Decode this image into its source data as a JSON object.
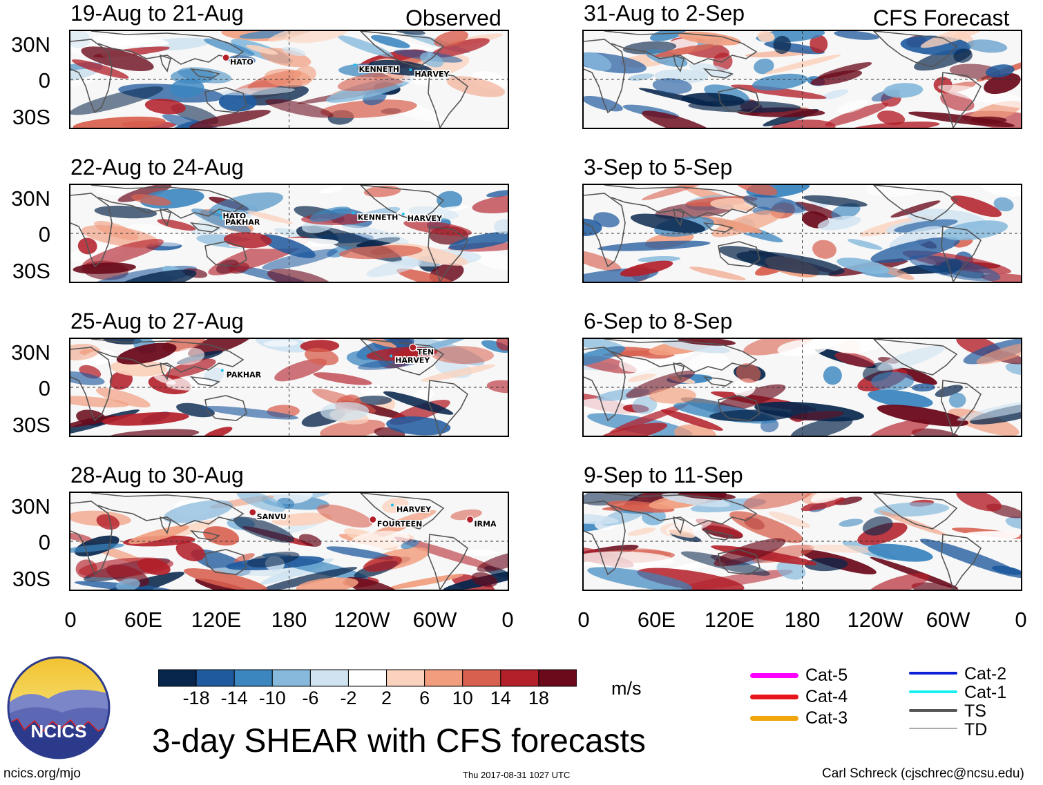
{
  "column_headings": {
    "observed": "Observed",
    "forecast": "CFS Forecast"
  },
  "panels_left": [
    {
      "title": "19-Aug to 21-Aug",
      "storms": [
        {
          "name": "HATO",
          "lon": 128,
          "lat": 18,
          "hurricane": true
        },
        {
          "name": "KENNETH",
          "lon": -126,
          "lat": 12,
          "hurricane": false
        },
        {
          "name": "HARVEY",
          "lon": -80,
          "lat": 8,
          "hurricane": false
        }
      ]
    },
    {
      "title": "22-Aug to 24-Aug",
      "storms": [
        {
          "name": "HATO",
          "lon": 122,
          "lat": 18,
          "hurricane": false
        },
        {
          "name": "PAKHAR",
          "lon": 124,
          "lat": 13,
          "hurricane": false
        },
        {
          "name": "KENNETH",
          "lon": -127,
          "lat": 17,
          "hurricane": false
        },
        {
          "name": "HARVEY",
          "lon": -86,
          "lat": 16,
          "hurricane": false
        }
      ]
    },
    {
      "title": "25-Aug to 27-Aug",
      "storms": [
        {
          "name": "PAKHAR",
          "lon": 125,
          "lat": 14,
          "hurricane": false
        },
        {
          "name": "TEN",
          "lon": -78,
          "lat": 33,
          "hurricane": true
        },
        {
          "name": "HARVEY",
          "lon": -96,
          "lat": 26,
          "hurricane": false
        }
      ]
    },
    {
      "title": "28-Aug to 30-Aug",
      "storms": [
        {
          "name": "SANVU",
          "lon": 150,
          "lat": 24,
          "hurricane": true
        },
        {
          "name": "HARVEY",
          "lon": -95,
          "lat": 30,
          "hurricane": false
        },
        {
          "name": "FOURTEEN",
          "lon": -111,
          "lat": 18,
          "hurricane": true
        },
        {
          "name": "IRMA",
          "lon": -31,
          "lat": 18,
          "hurricane": true
        }
      ]
    }
  ],
  "panels_right": [
    {
      "title": "31-Aug to 2-Sep"
    },
    {
      "title": "3-Sep to 5-Sep"
    },
    {
      "title": "6-Sep to 8-Sep"
    },
    {
      "title": "9-Sep to 11-Sep"
    }
  ],
  "lat_labels": [
    "30N",
    "0",
    "30S"
  ],
  "lon_labels": [
    "0",
    "60E",
    "120E",
    "180",
    "120W",
    "60W",
    "0"
  ],
  "colorbar": {
    "unit": "m/s",
    "ticks": [
      "-18",
      "-14",
      "-10",
      "-6",
      "-2",
      "2",
      "6",
      "10",
      "14",
      "18"
    ],
    "colors": [
      "#08264c",
      "#1f5a9e",
      "#3b86bf",
      "#86b9dc",
      "#cfe3f1",
      "#ffffff",
      "#fbd2bd",
      "#f19d7e",
      "#d8604f",
      "#b3202a",
      "#6a0a1b"
    ]
  },
  "storm_legend": [
    {
      "label": "Cat-5",
      "color": "#ff00ff"
    },
    {
      "label": "Cat-4",
      "color": "#e8141c"
    },
    {
      "label": "Cat-3",
      "color": "#f0a50a"
    },
    {
      "label": "Cat-2",
      "color": "#0a1fd6"
    },
    {
      "label": "Cat-1",
      "color": "#18f0f0"
    },
    {
      "label": "TS",
      "color": "#555555"
    },
    {
      "label": "TD",
      "color": "#aaaaaa"
    }
  ],
  "logo_text": "NCICS",
  "main_title": "3-day SHEAR with CFS forecasts",
  "footer": {
    "left": "ncics.org/mjo",
    "center": "Thu 2017-08-31 1027 UTC",
    "right": "Carl Schreck (cjschrec@ncsu.edu)"
  }
}
